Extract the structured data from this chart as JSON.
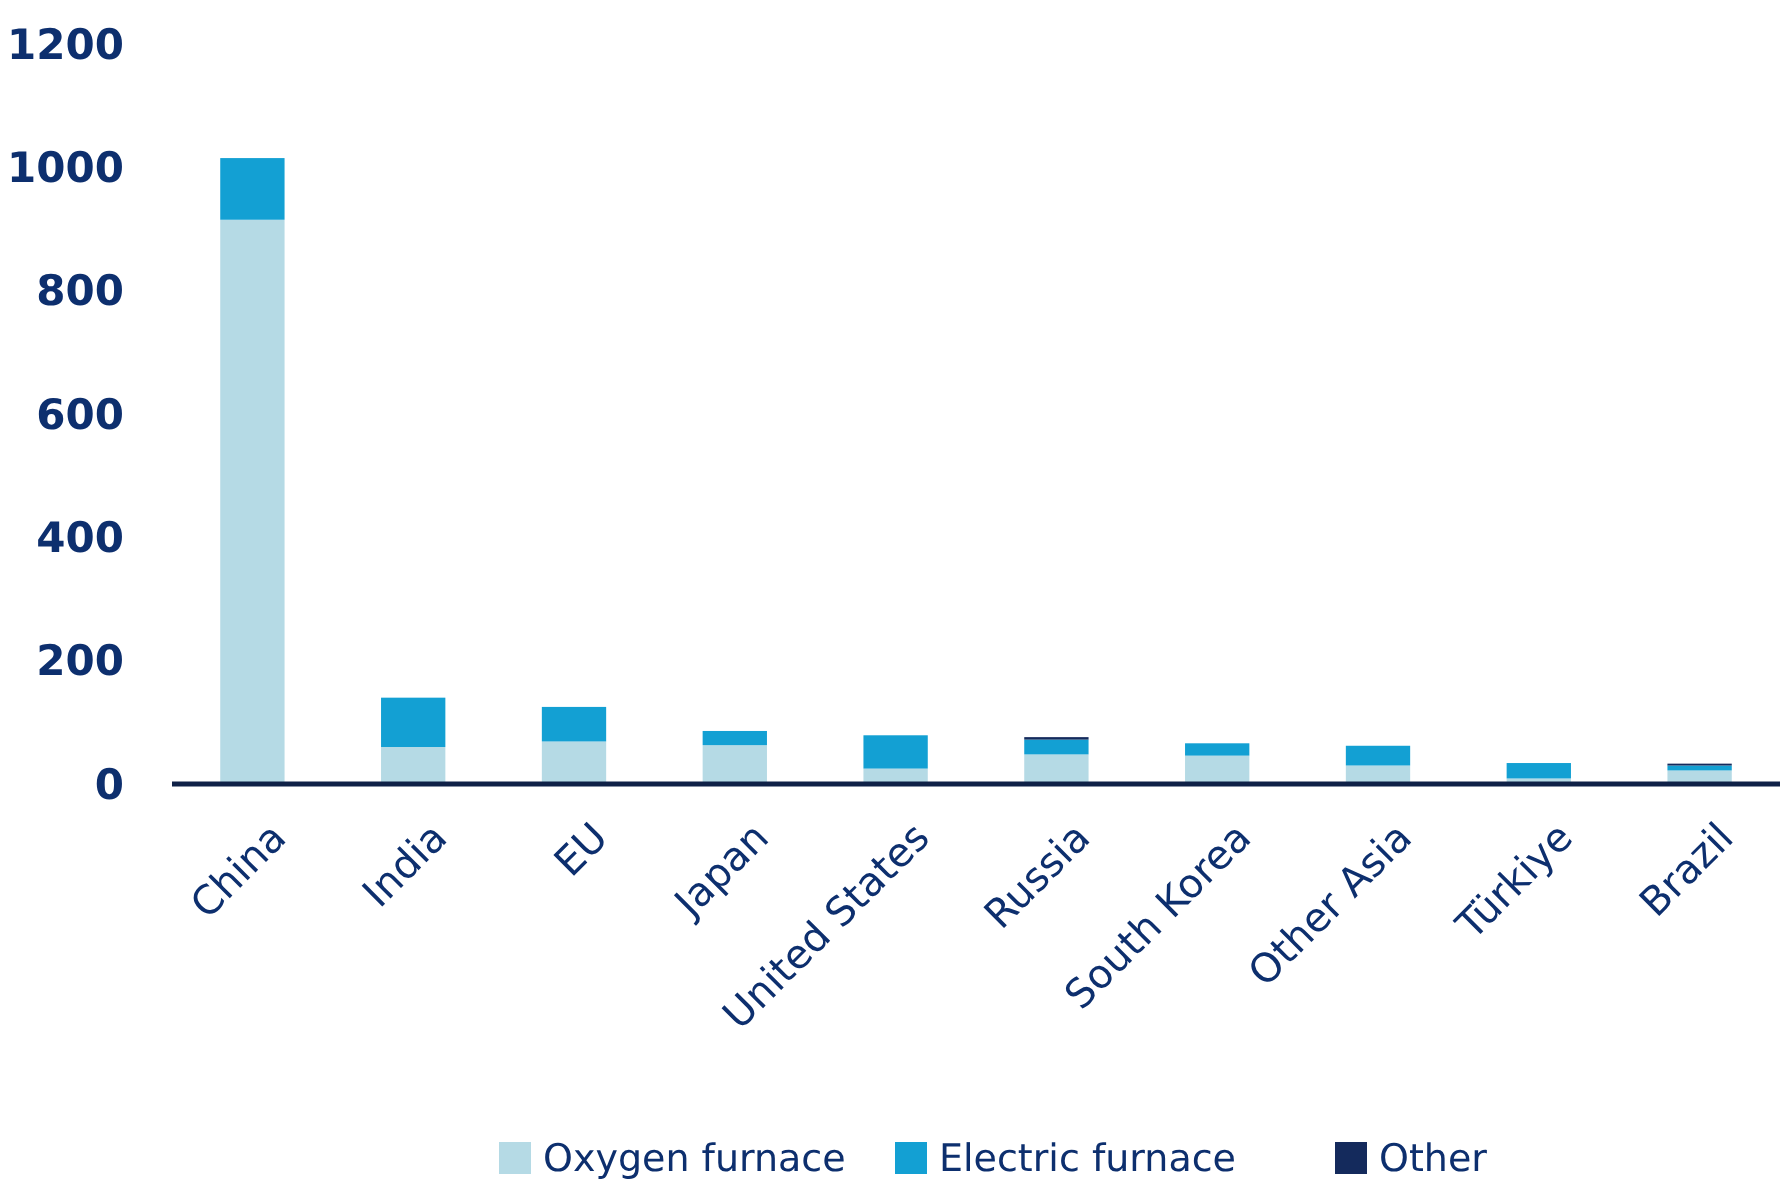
{
  "chart_data": {
    "type": "bar",
    "stacked": true,
    "categories": [
      "China",
      "India",
      "EU",
      "Japan",
      "United States",
      "Russia",
      "South Korea",
      "Other Asia",
      "Türkiye",
      "Brazil"
    ],
    "series": [
      {
        "name": "Oxygen furnace",
        "color": "#b5dae5",
        "values": [
          915,
          60,
          69,
          63,
          25,
          48,
          46,
          30,
          9,
          22
        ]
      },
      {
        "name": "Electric furnace",
        "color": "#13a0d3",
        "values": [
          100,
          80,
          56,
          23,
          54,
          24,
          20,
          32,
          25,
          8
        ]
      },
      {
        "name": "Other",
        "color": "#142a5c",
        "values": [
          0,
          0,
          0,
          0,
          0,
          4,
          0,
          0,
          0,
          3
        ]
      }
    ],
    "ylim": [
      0,
      1200
    ],
    "yticks": [
      0,
      200,
      400,
      600,
      800,
      1000,
      1200
    ],
    "grid": false,
    "legend": "bottom"
  }
}
